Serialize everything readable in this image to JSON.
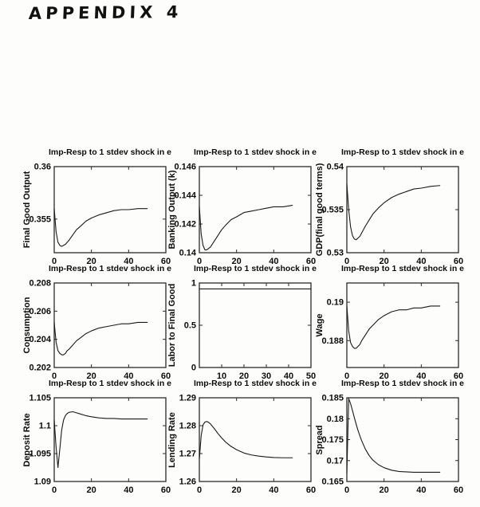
{
  "page": {
    "appendix_title": "APPENDIX 4"
  },
  "chart_data": [
    {
      "type": "line",
      "title": "Imp-Resp to 1 stdev shock in e",
      "ylabel": "Final Good Output",
      "xlabel": "",
      "xlim": [
        0,
        60
      ],
      "ylim": [
        0.3518,
        0.36
      ],
      "grid": false,
      "legend": "none",
      "xticks": {
        "values": [
          0,
          20,
          40,
          60
        ],
        "labels": [
          "0",
          "20",
          "40",
          "60"
        ]
      },
      "yticks": {
        "values": [
          0.355,
          0.36
        ],
        "labels": [
          "0.355",
          "0.36"
        ]
      },
      "series": [
        {
          "name": "impulse-response",
          "x": [
            0,
            1,
            2,
            3,
            4,
            5,
            6,
            7,
            8,
            10,
            12,
            14,
            17,
            20,
            24,
            28,
            32,
            36,
            40,
            45,
            50
          ],
          "y": [
            0.356,
            0.3538,
            0.3528,
            0.3525,
            0.3524,
            0.3525,
            0.3526,
            0.3528,
            0.353,
            0.3535,
            0.354,
            0.3543,
            0.3548,
            0.3551,
            0.3554,
            0.3556,
            0.3558,
            0.3559,
            0.3559,
            0.356,
            0.356
          ]
        }
      ]
    },
    {
      "type": "line",
      "title": "Imp-Resp to 1 stdev shock in e",
      "ylabel": "Banking Output (k)",
      "xlabel": "",
      "xlim": [
        0,
        60
      ],
      "ylim": [
        0.14,
        0.146
      ],
      "grid": false,
      "legend": "none",
      "xticks": {
        "values": [
          0,
          20,
          40,
          60
        ],
        "labels": [
          "0",
          "20",
          "40",
          "60"
        ]
      },
      "yticks": {
        "values": [
          0.14,
          0.142,
          0.144,
          0.146
        ],
        "labels": [
          "0.14",
          "0.142",
          "0.144",
          "0.146"
        ]
      },
      "series": [
        {
          "name": "impulse-response",
          "x": [
            0,
            1,
            2,
            3,
            4,
            5,
            6,
            7,
            8,
            10,
            12,
            14,
            17,
            20,
            24,
            28,
            32,
            36,
            40,
            45,
            50
          ],
          "y": [
            0.1432,
            0.1413,
            0.1405,
            0.1402,
            0.1402,
            0.1403,
            0.1404,
            0.1406,
            0.1408,
            0.1412,
            0.1416,
            0.1419,
            0.1423,
            0.1425,
            0.1428,
            0.1429,
            0.143,
            0.1431,
            0.1432,
            0.1432,
            0.1433
          ]
        }
      ]
    },
    {
      "type": "line",
      "title": "Imp-Resp to 1 stdev shock in e",
      "ylabel": "GDP(final good terms)",
      "xlabel": "",
      "xlim": [
        0,
        60
      ],
      "ylim": [
        0.53,
        0.54
      ],
      "grid": false,
      "legend": "none",
      "xticks": {
        "values": [
          0,
          20,
          40,
          60
        ],
        "labels": [
          "0",
          "20",
          "40",
          "60"
        ]
      },
      "yticks": {
        "values": [
          0.53,
          0.535,
          0.54
        ],
        "labels": [
          "0.53",
          "0.535",
          "0.54"
        ]
      },
      "series": [
        {
          "name": "impulse-response",
          "x": [
            0,
            1,
            2,
            3,
            4,
            5,
            6,
            7,
            8,
            10,
            12,
            14,
            17,
            20,
            24,
            28,
            32,
            36,
            40,
            45,
            50
          ],
          "y": [
            0.538,
            0.535,
            0.533,
            0.532,
            0.5316,
            0.5315,
            0.5317,
            0.5319,
            0.5323,
            0.5331,
            0.5338,
            0.5345,
            0.5352,
            0.5358,
            0.5364,
            0.5368,
            0.5371,
            0.5374,
            0.5375,
            0.5377,
            0.5378
          ]
        }
      ]
    },
    {
      "type": "line",
      "title": "Imp-Resp to 1 stdev shock in e",
      "ylabel": "Consumption",
      "xlabel": "",
      "xlim": [
        0,
        60
      ],
      "ylim": [
        0.202,
        0.208
      ],
      "grid": false,
      "legend": "none",
      "xticks": {
        "values": [
          0,
          20,
          40,
          60
        ],
        "labels": [
          "0",
          "20",
          "40",
          "60"
        ]
      },
      "yticks": {
        "values": [
          0.202,
          0.204,
          0.206,
          0.208
        ],
        "labels": [
          "0.202",
          "0.204",
          "0.206",
          "0.208"
        ]
      },
      "series": [
        {
          "name": "impulse-response",
          "x": [
            0,
            1,
            2,
            3,
            4,
            5,
            6,
            7,
            8,
            10,
            12,
            14,
            17,
            20,
            24,
            28,
            32,
            36,
            40,
            45,
            50
          ],
          "y": [
            0.2052,
            0.2038,
            0.2032,
            0.203,
            0.2029,
            0.2029,
            0.203,
            0.2032,
            0.2033,
            0.2036,
            0.2039,
            0.2041,
            0.2044,
            0.2046,
            0.2048,
            0.2049,
            0.205,
            0.2051,
            0.2051,
            0.2052,
            0.2052
          ]
        }
      ]
    },
    {
      "type": "line",
      "title": "Imp-Resp to 1 stdev shock in e",
      "ylabel": "Labor to Final Good",
      "xlabel": "",
      "xlim": [
        0,
        50
      ],
      "ylim": [
        0,
        1
      ],
      "grid": false,
      "legend": "none",
      "xticks": {
        "values": [
          10,
          20,
          30,
          40,
          50
        ],
        "labels": [
          "10",
          "20",
          "30",
          "40",
          "50"
        ]
      },
      "yticks": {
        "values": [
          0,
          0.5,
          1
        ],
        "labels": [
          "0",
          "0.5",
          "1"
        ]
      },
      "series": [
        {
          "name": "impulse-response",
          "x": [
            0,
            50
          ],
          "y": [
            0.93,
            0.93
          ]
        }
      ]
    },
    {
      "type": "line",
      "title": "Imp-Resp to 1 stdev shock in e",
      "ylabel": "Wage",
      "xlabel": "",
      "xlim": [
        0,
        60
      ],
      "ylim": [
        0.1866,
        0.191
      ],
      "grid": false,
      "legend": "none",
      "xticks": {
        "values": [
          0,
          20,
          40,
          60
        ],
        "labels": [
          "0",
          "20",
          "40",
          "60"
        ]
      },
      "yticks": {
        "values": [
          0.188,
          0.19
        ],
        "labels": [
          "0.188",
          "0.19"
        ]
      },
      "series": [
        {
          "name": "impulse-response",
          "x": [
            0,
            1,
            2,
            3,
            4,
            5,
            6,
            7,
            8,
            10,
            12,
            14,
            17,
            20,
            24,
            28,
            32,
            36,
            40,
            45,
            50
          ],
          "y": [
            0.1898,
            0.1885,
            0.1879,
            0.1877,
            0.1876,
            0.1876,
            0.1877,
            0.1878,
            0.188,
            0.1883,
            0.1886,
            0.1888,
            0.1891,
            0.1893,
            0.1895,
            0.1896,
            0.1896,
            0.1897,
            0.1897,
            0.1898,
            0.1898
          ]
        }
      ]
    },
    {
      "type": "line",
      "title": "Imp-Resp to 1 stdev shock in e",
      "ylabel": "Deposit Rate",
      "xlabel": "",
      "xlim": [
        0,
        60
      ],
      "ylim": [
        1.09,
        1.105
      ],
      "grid": false,
      "legend": "none",
      "xticks": {
        "values": [
          0,
          20,
          40,
          60
        ],
        "labels": [
          "0",
          "20",
          "40",
          "60"
        ]
      },
      "yticks": {
        "values": [
          1.09,
          1.095,
          1.1,
          1.105
        ],
        "labels": [
          "1.09",
          "1.095",
          "1.1",
          "1.105"
        ]
      },
      "series": [
        {
          "name": "impulse-response",
          "x": [
            0,
            1,
            2,
            3,
            4,
            5,
            6,
            7,
            8,
            10,
            12,
            14,
            17,
            20,
            24,
            28,
            32,
            36,
            40,
            45,
            50
          ],
          "y": [
            1.101,
            1.0962,
            1.0925,
            1.0958,
            1.0992,
            1.101,
            1.1018,
            1.1022,
            1.1024,
            1.1025,
            1.1023,
            1.1021,
            1.1018,
            1.1016,
            1.1014,
            1.1013,
            1.1013,
            1.1012,
            1.1012,
            1.1012,
            1.1012
          ]
        }
      ]
    },
    {
      "type": "line",
      "title": "Imp-Resp to 1 stdev shock in e",
      "ylabel": "Lending Rate",
      "xlabel": "",
      "xlim": [
        0,
        60
      ],
      "ylim": [
        1.26,
        1.29
      ],
      "grid": false,
      "legend": "none",
      "xticks": {
        "values": [
          0,
          20,
          40,
          60
        ],
        "labels": [
          "0",
          "20",
          "40",
          "60"
        ]
      },
      "yticks": {
        "values": [
          1.26,
          1.27,
          1.28,
          1.29
        ],
        "labels": [
          "1.26",
          "1.27",
          "1.28",
          "1.29"
        ]
      },
      "series": [
        {
          "name": "impulse-response",
          "x": [
            0,
            1,
            2,
            3,
            4,
            5,
            6,
            7,
            8,
            10,
            12,
            14,
            17,
            20,
            24,
            28,
            32,
            36,
            40,
            45,
            50
          ],
          "y": [
            1.268,
            1.2765,
            1.2803,
            1.2813,
            1.2815,
            1.2812,
            1.2806,
            1.2798,
            1.279,
            1.2772,
            1.2756,
            1.2742,
            1.2726,
            1.2714,
            1.2702,
            1.2695,
            1.2691,
            1.2688,
            1.2686,
            1.2685,
            1.2685
          ]
        }
      ]
    },
    {
      "type": "line",
      "title": "Imp-Resp to 1 stdev shock in e",
      "ylabel": "Spread",
      "xlabel": "",
      "xlim": [
        0,
        60
      ],
      "ylim": [
        0.165,
        0.185
      ],
      "grid": false,
      "legend": "none",
      "xticks": {
        "values": [
          0,
          20,
          40,
          60
        ],
        "labels": [
          "0",
          "20",
          "40",
          "60"
        ]
      },
      "yticks": {
        "values": [
          0.165,
          0.17,
          0.175,
          0.18,
          0.185
        ],
        "labels": [
          "0.165",
          "0.17",
          "0.175",
          "0.18",
          "0.185"
        ]
      },
      "series": [
        {
          "name": "impulse-response",
          "x": [
            0,
            1,
            2,
            3,
            4,
            5,
            6,
            7,
            8,
            10,
            12,
            14,
            17,
            20,
            24,
            28,
            32,
            36,
            40,
            45,
            50
          ],
          "y": [
            0.167,
            0.1848,
            0.1836,
            0.182,
            0.1803,
            0.1787,
            0.1772,
            0.1759,
            0.1747,
            0.1727,
            0.1712,
            0.1701,
            0.169,
            0.1683,
            0.1677,
            0.1674,
            0.1673,
            0.1672,
            0.1672,
            0.1672,
            0.1672
          ]
        }
      ]
    }
  ]
}
